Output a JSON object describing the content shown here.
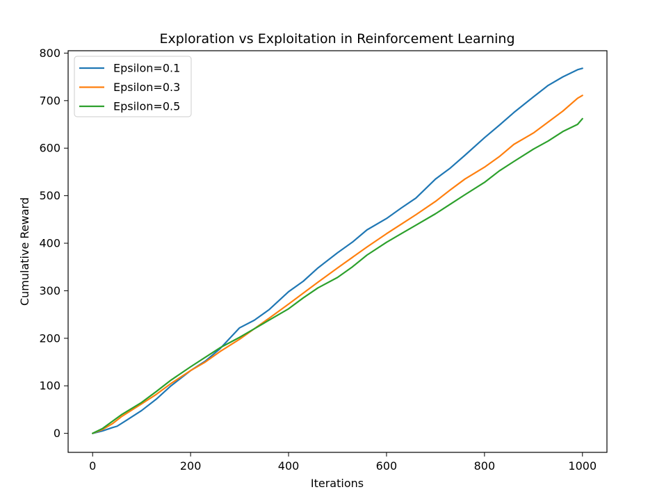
{
  "chart_data": {
    "type": "line",
    "title": "Exploration vs Exploitation in Reinforcement Learning",
    "xlabel": "Iterations",
    "ylabel": "Cumulative Reward",
    "xlim": [
      -50,
      1050
    ],
    "ylim": [
      -40,
      805
    ],
    "xticks": [
      0,
      200,
      400,
      600,
      800,
      1000
    ],
    "yticks": [
      0,
      100,
      200,
      300,
      400,
      500,
      600,
      700,
      800
    ],
    "grid": false,
    "legend_position": "top-left",
    "series": [
      {
        "name": "Epsilon=0.1",
        "color": "#1f77b4",
        "points": [
          [
            0,
            0
          ],
          [
            20,
            5
          ],
          [
            40,
            12
          ],
          [
            50,
            15
          ],
          [
            70,
            28
          ],
          [
            100,
            48
          ],
          [
            130,
            72
          ],
          [
            160,
            100
          ],
          [
            200,
            132
          ],
          [
            230,
            152
          ],
          [
            260,
            178
          ],
          [
            300,
            222
          ],
          [
            330,
            238
          ],
          [
            360,
            260
          ],
          [
            400,
            298
          ],
          [
            430,
            320
          ],
          [
            460,
            348
          ],
          [
            500,
            380
          ],
          [
            530,
            402
          ],
          [
            560,
            428
          ],
          [
            600,
            452
          ],
          [
            630,
            474
          ],
          [
            660,
            495
          ],
          [
            700,
            535
          ],
          [
            730,
            558
          ],
          [
            760,
            585
          ],
          [
            800,
            622
          ],
          [
            830,
            648
          ],
          [
            860,
            675
          ],
          [
            900,
            708
          ],
          [
            930,
            732
          ],
          [
            960,
            750
          ],
          [
            990,
            765
          ],
          [
            1000,
            768
          ]
        ]
      },
      {
        "name": "Epsilon=0.3",
        "color": "#ff7f0e",
        "points": [
          [
            0,
            0
          ],
          [
            20,
            8
          ],
          [
            40,
            20
          ],
          [
            60,
            36
          ],
          [
            100,
            62
          ],
          [
            130,
            82
          ],
          [
            160,
            105
          ],
          [
            200,
            132
          ],
          [
            230,
            150
          ],
          [
            260,
            172
          ],
          [
            300,
            198
          ],
          [
            330,
            220
          ],
          [
            360,
            242
          ],
          [
            400,
            272
          ],
          [
            430,
            295
          ],
          [
            460,
            318
          ],
          [
            500,
            348
          ],
          [
            530,
            370
          ],
          [
            560,
            392
          ],
          [
            600,
            420
          ],
          [
            630,
            440
          ],
          [
            660,
            460
          ],
          [
            700,
            488
          ],
          [
            730,
            512
          ],
          [
            760,
            535
          ],
          [
            800,
            560
          ],
          [
            830,
            582
          ],
          [
            860,
            608
          ],
          [
            900,
            632
          ],
          [
            930,
            655
          ],
          [
            960,
            678
          ],
          [
            990,
            705
          ],
          [
            1000,
            711
          ]
        ]
      },
      {
        "name": "Epsilon=0.5",
        "color": "#2ca02c",
        "points": [
          [
            0,
            0
          ],
          [
            20,
            10
          ],
          [
            40,
            25
          ],
          [
            60,
            40
          ],
          [
            100,
            65
          ],
          [
            130,
            88
          ],
          [
            160,
            112
          ],
          [
            200,
            140
          ],
          [
            230,
            160
          ],
          [
            260,
            180
          ],
          [
            300,
            202
          ],
          [
            330,
            220
          ],
          [
            360,
            238
          ],
          [
            400,
            262
          ],
          [
            430,
            285
          ],
          [
            460,
            306
          ],
          [
            500,
            328
          ],
          [
            530,
            350
          ],
          [
            560,
            375
          ],
          [
            600,
            402
          ],
          [
            630,
            420
          ],
          [
            660,
            438
          ],
          [
            700,
            462
          ],
          [
            730,
            482
          ],
          [
            760,
            502
          ],
          [
            800,
            528
          ],
          [
            830,
            552
          ],
          [
            860,
            572
          ],
          [
            900,
            598
          ],
          [
            930,
            615
          ],
          [
            960,
            635
          ],
          [
            990,
            650
          ],
          [
            1000,
            662
          ]
        ]
      }
    ]
  }
}
